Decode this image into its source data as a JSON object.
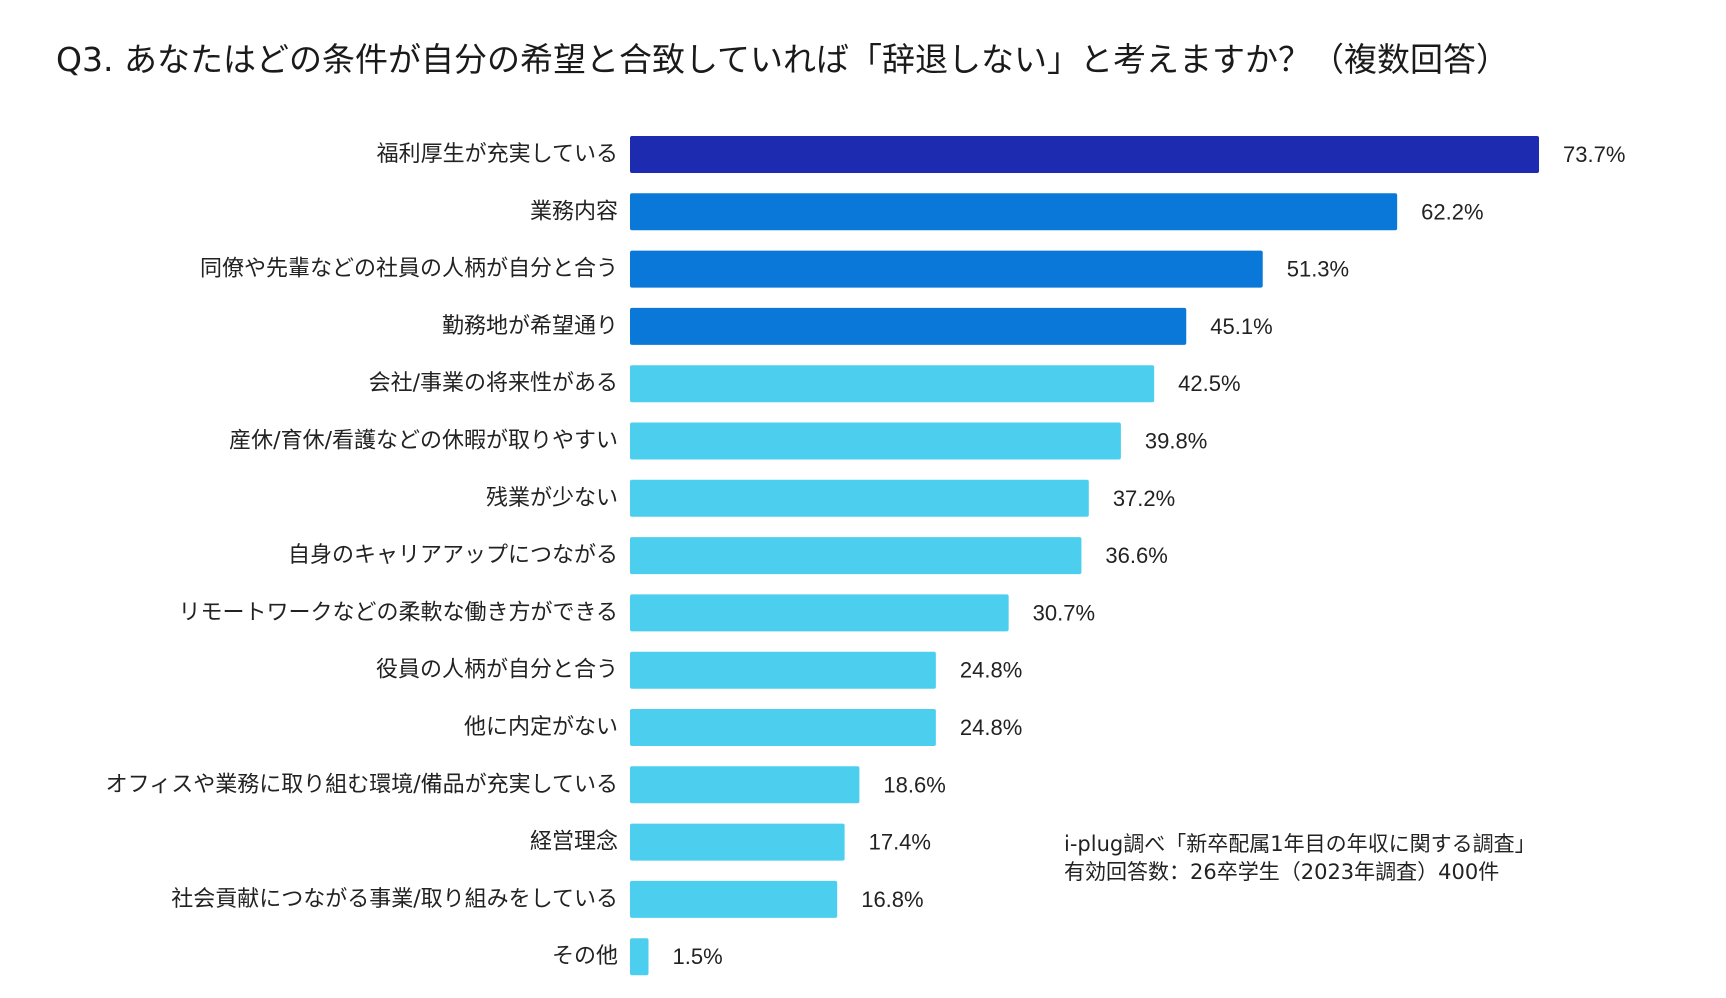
{
  "chart_data": {
    "type": "bar",
    "orientation": "horizontal",
    "title": "Q3. あなたはどの条件が自分の希望と合致していれば「辞退しない」と考えますか？（複数回答）",
    "unit": "%",
    "xlim": [
      0,
      80
    ],
    "grid": false,
    "categories": [
      "福利厚生が充実している",
      "業務内容",
      "同僚や先輩などの社員の人柄が自分と合う",
      "勤務地が希望通り",
      "会社/事業の将来性がある",
      "産休/育休/看護などの休暇が取りやすい",
      "残業が少ない",
      "自身のキャリアアップにつながる",
      "リモートワークなどの柔軟な働き方ができる",
      "役員の人柄が自分と合う",
      "他に内定がない",
      "オフィスや業務に取り組む環境/備品が充実している",
      "経営理念",
      "社会貢献につながる事業/取り組みをしている",
      "その他"
    ],
    "values": [
      73.7,
      62.2,
      51.3,
      45.1,
      42.5,
      39.8,
      37.2,
      36.6,
      30.7,
      24.8,
      24.8,
      18.6,
      17.4,
      16.8,
      1.5
    ],
    "value_labels": [
      "73.7%",
      "62.2%",
      "51.3%",
      "45.1%",
      "42.5%",
      "39.8%",
      "37.2%",
      "36.6%",
      "30.7%",
      "24.8%",
      "24.8%",
      "18.6%",
      "17.4%",
      "16.8%",
      "1.5%"
    ],
    "bar_colors": [
      "#1c2bb0",
      "#0a78d8",
      "#0a78d8",
      "#0a78d8",
      "#4ccfee",
      "#4ccfee",
      "#4ccfee",
      "#4ccfee",
      "#4ccfee",
      "#4ccfee",
      "#4ccfee",
      "#4ccfee",
      "#4ccfee",
      "#4ccfee",
      "#4ccfee"
    ]
  },
  "note": {
    "line1": "i-plug調べ「新卒配属1年目の年収に関する調査」",
    "line2": "有効回答数：26卒学生（2023年調査）400件"
  }
}
